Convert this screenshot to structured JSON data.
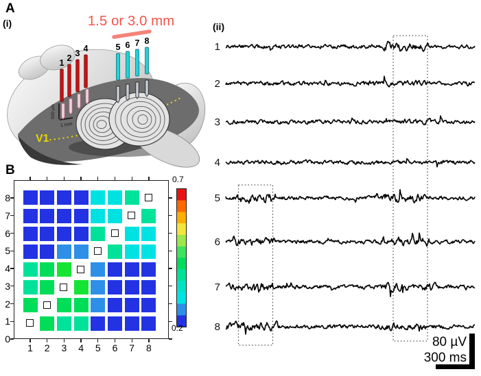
{
  "panels": {
    "a_label": "A",
    "a_roman": "(i)",
    "b_label": "B",
    "ii_roman": "(ii)"
  },
  "brain": {
    "distance_label": "1.5 or 3.0 mm",
    "v1_label": "V1",
    "depth_scale": "500 µm",
    "length_scale": "1 mm",
    "electrode_groups": [
      {
        "name": "red-array",
        "color": "#c41414",
        "labels": [
          "1",
          "2",
          "3",
          "4"
        ]
      },
      {
        "name": "cyan-array",
        "color": "#22d2da",
        "labels": [
          "5",
          "6",
          "7",
          "8"
        ]
      }
    ],
    "accent_colors": {
      "distance_text": "#f4544a",
      "distance_bar": "#f4837a",
      "v1_text": "#e6d200"
    }
  },
  "traces": {
    "labels": [
      "1",
      "2",
      "3",
      "4",
      "5",
      "6",
      "7",
      "8"
    ],
    "scale_voltage": "80 µV",
    "scale_time": "300 ms"
  },
  "chart_data": [
    {
      "type": "heatmap",
      "title": "",
      "x_tick_labels": [
        "1",
        "2",
        "3",
        "4",
        "5",
        "6",
        "7",
        "8"
      ],
      "y_tick_labels": [
        "0",
        "1",
        "2",
        "3",
        "4",
        "5",
        "6",
        "7",
        "8"
      ],
      "rows_top_to_bottom": [
        8,
        7,
        6,
        5,
        4,
        3,
        2,
        1
      ],
      "diagonal_marker": "open-square",
      "colorbar": {
        "top_label": "0.7",
        "bottom_label": "0.2",
        "min": 0.2,
        "max": 0.7,
        "gradient_top_to_bottom": [
          "#e81414",
          "#ff6a00",
          "#ffae00",
          "#f2e63c",
          "#9ae84a",
          "#3ce45c",
          "#00dd5e",
          "#00e295",
          "#00e4c4",
          "#00e4e4",
          "#2e8fe8",
          "#2333e3"
        ]
      },
      "cells": [
        [
          {
            "v": 0.24,
            "c": "#2333e3"
          },
          {
            "v": 0.24,
            "c": "#2333e3"
          },
          {
            "v": 0.24,
            "c": "#2333e3"
          },
          {
            "v": 0.24,
            "c": "#2333e3"
          },
          {
            "v": 0.33,
            "c": "#00e2e2"
          },
          {
            "v": 0.33,
            "c": "#00e2e2"
          },
          {
            "v": 0.37,
            "c": "#00e29a"
          },
          null
        ],
        [
          {
            "v": 0.24,
            "c": "#2333e3"
          },
          {
            "v": 0.24,
            "c": "#2333e3"
          },
          {
            "v": 0.24,
            "c": "#2333e3"
          },
          {
            "v": 0.24,
            "c": "#2333e3"
          },
          {
            "v": 0.33,
            "c": "#00e2e2"
          },
          {
            "v": 0.33,
            "c": "#00e2e2"
          },
          null,
          {
            "v": 0.37,
            "c": "#00e29a"
          }
        ],
        [
          {
            "v": 0.24,
            "c": "#2333e3"
          },
          {
            "v": 0.24,
            "c": "#2333e3"
          },
          {
            "v": 0.24,
            "c": "#2333e3"
          },
          {
            "v": 0.24,
            "c": "#2333e3"
          },
          {
            "v": 0.37,
            "c": "#00e29a"
          },
          null,
          {
            "v": 0.33,
            "c": "#00e2e2"
          },
          {
            "v": 0.33,
            "c": "#00e2e2"
          }
        ],
        [
          {
            "v": 0.24,
            "c": "#2333e3"
          },
          {
            "v": 0.24,
            "c": "#2333e3"
          },
          {
            "v": 0.28,
            "c": "#2e8fe8"
          },
          {
            "v": 0.28,
            "c": "#2e8fe8"
          },
          null,
          {
            "v": 0.37,
            "c": "#00e29a"
          },
          {
            "v": 0.33,
            "c": "#00e2e2"
          },
          {
            "v": 0.33,
            "c": "#00e2e2"
          }
        ],
        [
          {
            "v": 0.37,
            "c": "#00e29a"
          },
          {
            "v": 0.4,
            "c": "#00dd58"
          },
          {
            "v": 0.43,
            "c": "#16e434"
          },
          null,
          {
            "v": 0.28,
            "c": "#2e8fe8"
          },
          {
            "v": 0.24,
            "c": "#2333e3"
          },
          {
            "v": 0.24,
            "c": "#2333e3"
          },
          {
            "v": 0.24,
            "c": "#2333e3"
          }
        ],
        [
          {
            "v": 0.37,
            "c": "#00e29a"
          },
          {
            "v": 0.4,
            "c": "#00dd58"
          },
          null,
          {
            "v": 0.43,
            "c": "#16e434"
          },
          {
            "v": 0.28,
            "c": "#2e8fe8"
          },
          {
            "v": 0.24,
            "c": "#2333e3"
          },
          {
            "v": 0.24,
            "c": "#2333e3"
          },
          {
            "v": 0.24,
            "c": "#2333e3"
          }
        ],
        [
          {
            "v": 0.4,
            "c": "#00dd58"
          },
          null,
          {
            "v": 0.4,
            "c": "#00dd58"
          },
          {
            "v": 0.4,
            "c": "#00dd58"
          },
          {
            "v": 0.28,
            "c": "#2e8fe8"
          },
          {
            "v": 0.24,
            "c": "#2333e3"
          },
          {
            "v": 0.24,
            "c": "#2333e3"
          },
          {
            "v": 0.24,
            "c": "#2333e3"
          }
        ],
        [
          null,
          {
            "v": 0.4,
            "c": "#00dd58"
          },
          {
            "v": 0.37,
            "c": "#00e29a"
          },
          {
            "v": 0.37,
            "c": "#00e29a"
          },
          {
            "v": 0.24,
            "c": "#2333e3"
          },
          {
            "v": 0.24,
            "c": "#2333e3"
          },
          {
            "v": 0.24,
            "c": "#2333e3"
          },
          {
            "v": 0.24,
            "c": "#2333e3"
          }
        ]
      ]
    },
    {
      "type": "line",
      "series_labels": [
        "1",
        "2",
        "3",
        "4",
        "5",
        "6",
        "7",
        "8"
      ],
      "scale_bar": {
        "voltage": "80 µV",
        "time": "300 ms"
      },
      "burst_windows_frac": [
        [
          {
            "start": 0.63,
            "end": 0.82,
            "amp": 1.9
          }
        ],
        [
          {
            "start": 0.55,
            "end": 0.8,
            "amp": 1.35
          }
        ],
        [
          {
            "start": 0.7,
            "end": 0.83,
            "amp": 1.3
          }
        ],
        [],
        [
          {
            "start": 0.03,
            "end": 0.2,
            "amp": 2.1
          },
          {
            "start": 0.6,
            "end": 0.82,
            "amp": 1.9
          }
        ],
        [
          {
            "start": 0.03,
            "end": 0.2,
            "amp": 1.8
          },
          {
            "start": 0.62,
            "end": 0.82,
            "amp": 1.8
          }
        ],
        [
          {
            "start": 0.0,
            "end": 0.2,
            "amp": 1.7
          },
          {
            "start": 0.62,
            "end": 0.85,
            "amp": 1.7
          }
        ],
        [
          {
            "start": 0.0,
            "end": 0.22,
            "amp": 1.9
          },
          {
            "start": 0.6,
            "end": 0.8,
            "amp": 1.6
          }
        ]
      ]
    }
  ]
}
